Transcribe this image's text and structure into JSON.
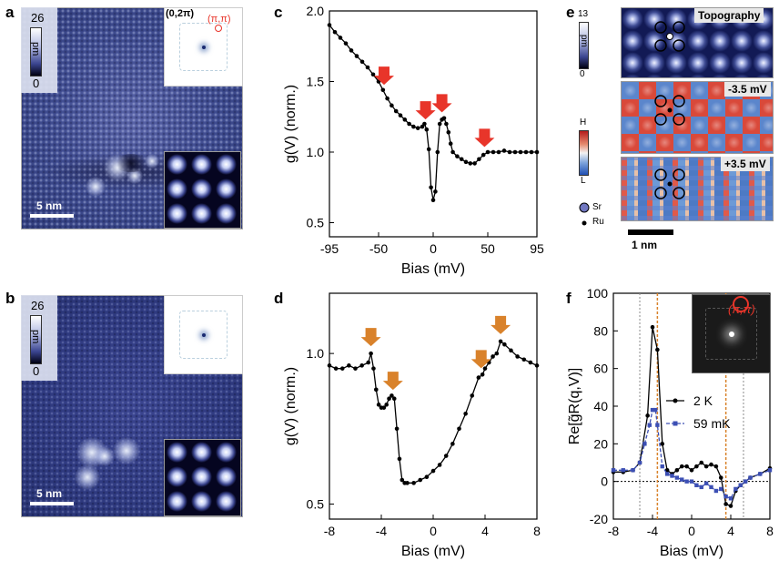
{
  "panels": {
    "a": {
      "label": "a",
      "scale_label": "5 nm",
      "cbar_max": "26",
      "cbar_min": "0",
      "cbar_unit": "pm",
      "fft_label_1": "(0,2π)",
      "fft_label_2": "(π,π)"
    },
    "b": {
      "label": "b",
      "scale_label": "5 nm",
      "cbar_max": "26",
      "cbar_min": "0",
      "cbar_unit": "pm"
    },
    "c": {
      "label": "c"
    },
    "d": {
      "label": "d"
    },
    "e": {
      "label": "e",
      "topo_title": "Topography",
      "map1_title": "-3.5 mV",
      "map2_title": "+3.5 mV",
      "cbar_max": "13",
      "cbar_min": "0",
      "cbar_unit": "pm",
      "hl_high": "H",
      "hl_low": "L",
      "legend_sr": "Sr",
      "legend_ru": "Ru",
      "scale_label": "1 nm"
    },
    "f": {
      "label": "f",
      "inset_label": "(π,π)"
    }
  },
  "colors": {
    "arrow_red": "#e8352a",
    "arrow_orange": "#d9822b",
    "series_black": "#000000",
    "series_blue": "#3c4fb4",
    "line_orange": "#d9822b",
    "line_gray": "#8a8a8a"
  },
  "chart_data": [
    {
      "id": "c",
      "type": "line",
      "xlabel": "Bias (mV)",
      "ylabel": "g(V) (norm.)",
      "xlim": [
        -95,
        95
      ],
      "ylim": [
        0.4,
        2.0
      ],
      "xticks": [
        -95,
        -50,
        0,
        50,
        95
      ],
      "yticks": [
        0.5,
        1.0,
        1.5,
        2.0
      ],
      "ytick_labels": [
        "0.5",
        "1.0",
        "1.5",
        "2.0"
      ],
      "arrows": [
        -45,
        -7,
        8,
        47
      ],
      "x": [
        -95,
        -90,
        -85,
        -80,
        -75,
        -70,
        -65,
        -60,
        -55,
        -50,
        -46,
        -42,
        -38,
        -34,
        -30,
        -26,
        -22,
        -18,
        -14,
        -10,
        -8,
        -6,
        -4,
        -2,
        0,
        2,
        4,
        6,
        8,
        10,
        12,
        14,
        16,
        18,
        22,
        26,
        30,
        34,
        38,
        42,
        46,
        50,
        55,
        60,
        65,
        70,
        75,
        80,
        85,
        90,
        95
      ],
      "y": [
        1.9,
        1.85,
        1.81,
        1.77,
        1.72,
        1.68,
        1.64,
        1.6,
        1.55,
        1.5,
        1.44,
        1.38,
        1.33,
        1.29,
        1.26,
        1.23,
        1.2,
        1.18,
        1.17,
        1.18,
        1.2,
        1.16,
        1.02,
        0.75,
        0.66,
        0.72,
        1.0,
        1.2,
        1.23,
        1.24,
        1.2,
        1.14,
        1.06,
        1.0,
        0.97,
        0.95,
        0.93,
        0.92,
        0.92,
        0.95,
        0.98,
        1.0,
        1.0,
        1.0,
        1.01,
        1.0,
        1.0,
        1.0,
        1.0,
        1.0,
        1.0
      ]
    },
    {
      "id": "d",
      "type": "line",
      "xlabel": "Bias (mV)",
      "ylabel": "g(V) (norm.)",
      "xlim": [
        -8,
        8
      ],
      "ylim": [
        0.45,
        1.2
      ],
      "xticks": [
        -8,
        -4,
        0,
        4,
        8
      ],
      "yticks": [
        0.5,
        1.0
      ],
      "ytick_labels": [
        "0.5",
        "1.0"
      ],
      "arrows": [
        -4.8,
        -3.1,
        3.7,
        5.2
      ],
      "x": [
        -8,
        -7.5,
        -7,
        -6.5,
        -6,
        -5.5,
        -5,
        -4.8,
        -4.6,
        -4.4,
        -4.2,
        -4,
        -3.8,
        -3.6,
        -3.4,
        -3.2,
        -3,
        -2.8,
        -2.6,
        -2.4,
        -2.2,
        -2,
        -1.5,
        -1,
        -0.5,
        0,
        0.5,
        1,
        1.5,
        2,
        2.5,
        3,
        3.5,
        3.8,
        4,
        4.3,
        4.6,
        4.9,
        5.2,
        5.5,
        6,
        6.5,
        7,
        7.5,
        8
      ],
      "y": [
        0.96,
        0.95,
        0.95,
        0.96,
        0.95,
        0.96,
        0.97,
        1.0,
        0.95,
        0.88,
        0.83,
        0.82,
        0.82,
        0.83,
        0.85,
        0.86,
        0.85,
        0.75,
        0.65,
        0.58,
        0.57,
        0.57,
        0.57,
        0.58,
        0.59,
        0.61,
        0.63,
        0.66,
        0.7,
        0.75,
        0.8,
        0.86,
        0.92,
        0.93,
        0.95,
        0.97,
        0.99,
        1.0,
        1.04,
        1.03,
        1.01,
        0.99,
        0.98,
        0.97,
        0.96
      ]
    },
    {
      "id": "f",
      "type": "line",
      "xlabel": "Bias (mV)",
      "ylabel": "Re[g̃R(q,V)]",
      "xlim": [
        -8,
        8
      ],
      "ylim": [
        -20,
        100
      ],
      "xticks": [
        -8,
        -4,
        0,
        4,
        8
      ],
      "yticks": [
        -20,
        0,
        20,
        40,
        60,
        80,
        100
      ],
      "vlines_orange": [
        -3.5,
        3.5
      ],
      "vlines_gray": [
        -5.3,
        5.3
      ],
      "series": [
        {
          "name": "2 K",
          "x": [
            -8,
            -7,
            -6,
            -5.3,
            -4.5,
            -4,
            -3.5,
            -3,
            -2.5,
            -2,
            -1.5,
            -1,
            -0.5,
            0,
            0.5,
            1,
            1.5,
            2,
            2.5,
            3,
            3.5,
            4,
            4.5,
            5,
            5.5,
            6,
            7,
            8
          ],
          "y": [
            5,
            5,
            6,
            10,
            35,
            82,
            70,
            20,
            6,
            4,
            6,
            8,
            8,
            6,
            8,
            10,
            8,
            9,
            8,
            2,
            -12,
            -13,
            -5,
            -2,
            0,
            2,
            4,
            7
          ]
        },
        {
          "name": "59 mK",
          "x": [
            -8,
            -7,
            -6,
            -5.3,
            -4.8,
            -4.3,
            -4,
            -3.7,
            -3.5,
            -3,
            -2.5,
            -2,
            -1.5,
            -1,
            -0.5,
            0,
            0.5,
            1,
            1.5,
            2,
            2.5,
            3,
            3.5,
            4,
            4.5,
            5,
            5.5,
            6,
            7,
            8
          ],
          "y": [
            6,
            6,
            6,
            10,
            20,
            30,
            38,
            38,
            30,
            8,
            4,
            3,
            2,
            1,
            0,
            0,
            -2,
            -3,
            -1,
            -3,
            -5,
            -4,
            -8,
            -9,
            -4,
            -2,
            0,
            2,
            4,
            6
          ]
        }
      ]
    }
  ]
}
